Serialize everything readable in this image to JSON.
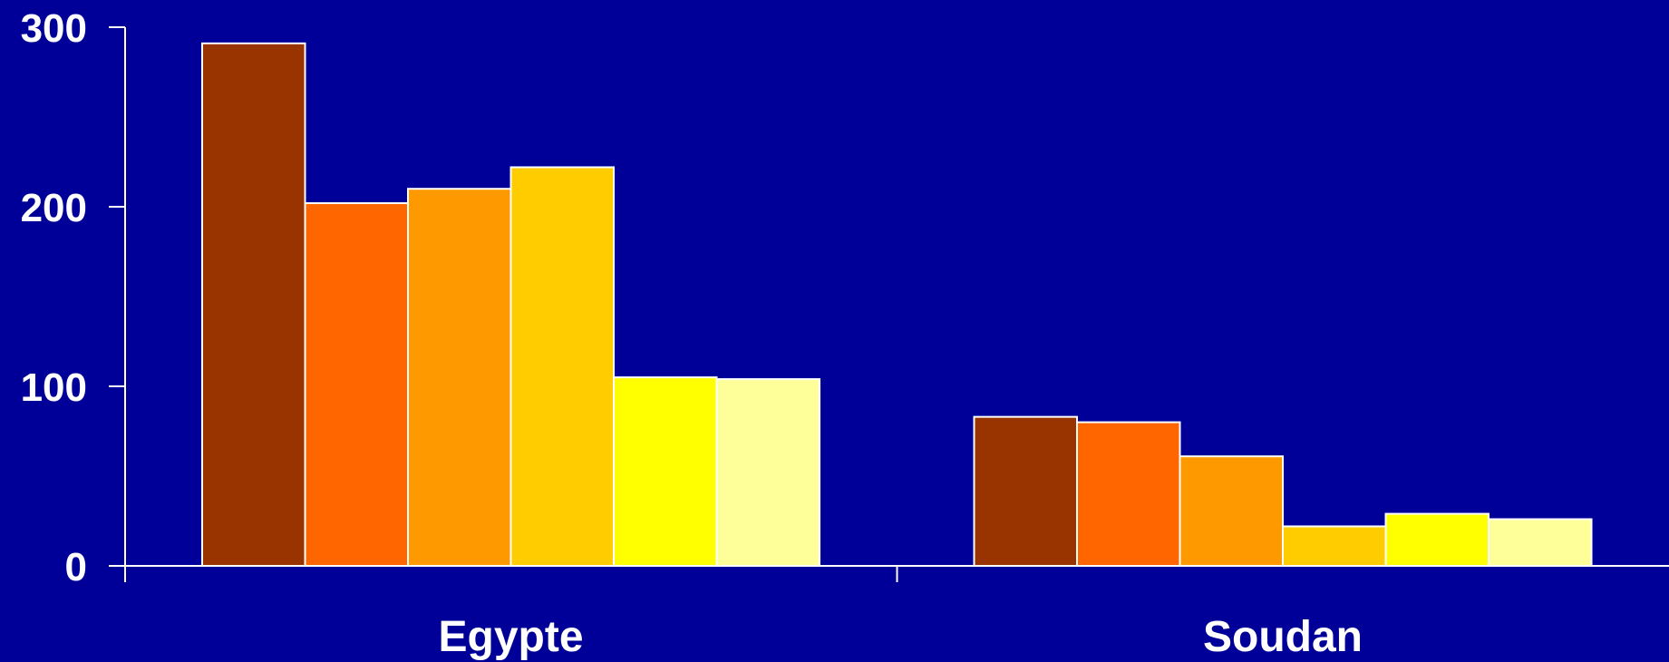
{
  "chart_data": {
    "type": "bar",
    "title": "",
    "xlabel": "",
    "ylabel": "",
    "categories": [
      "Egypte",
      "Soudan"
    ],
    "ylim": [
      0,
      300
    ],
    "yticks": [
      0,
      100,
      200,
      300
    ],
    "grid": false,
    "legend": "none",
    "series": [
      {
        "color": "#993300",
        "values": [
          291,
          83
        ]
      },
      {
        "color": "#ff6600",
        "values": [
          202,
          80
        ]
      },
      {
        "color": "#ff9900",
        "values": [
          210,
          61
        ]
      },
      {
        "color": "#ffcc00",
        "values": [
          222,
          22
        ]
      },
      {
        "color": "#ffff00",
        "values": [
          105,
          29
        ]
      },
      {
        "color": "#ffff99",
        "values": [
          104,
          26
        ]
      }
    ],
    "background": "#000099",
    "axis_color": "#ffffff"
  }
}
